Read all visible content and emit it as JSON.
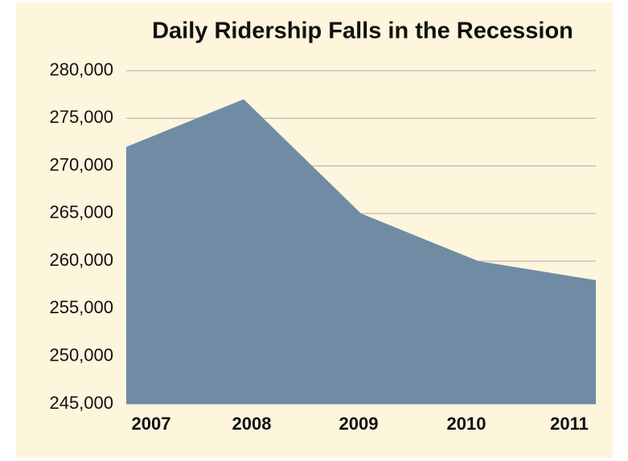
{
  "chart_data": {
    "type": "area",
    "title": "Daily Ridership Falls in the Recession",
    "categories": [
      "2007",
      "2008",
      "2009",
      "2010",
      "2011"
    ],
    "values": [
      272000,
      277000,
      265000,
      260000,
      258000
    ],
    "color": "#6f8ca4",
    "ylim": [
      245000,
      280000
    ],
    "yticks": [
      {
        "value": 245000,
        "label": "245,000"
      },
      {
        "value": 250000,
        "label": "250,000"
      },
      {
        "value": 255000,
        "label": "255,000"
      },
      {
        "value": 260000,
        "label": "260,000"
      },
      {
        "value": 265000,
        "label": "265,000"
      },
      {
        "value": 270000,
        "label": "270,000"
      },
      {
        "value": 275000,
        "label": "275,000"
      },
      {
        "value": 280000,
        "label": "280,000"
      }
    ],
    "grid": true
  }
}
